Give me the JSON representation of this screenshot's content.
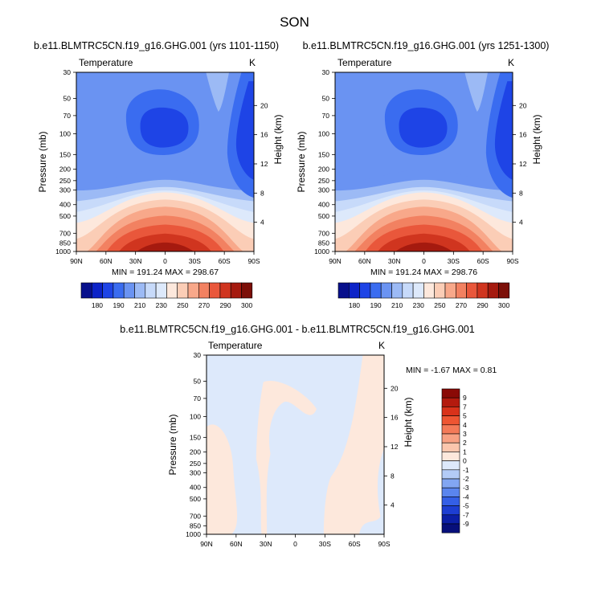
{
  "figure_title": "SON",
  "chart_data": [
    {
      "type": "heatmap",
      "title": "b.e11.BLMTRC5CN.f19_g16.GHG.001 (yrs 1101-1150)",
      "left_label": "Temperature",
      "right_label": "K",
      "xlabel": "",
      "ylabel": "Pressure (mb)",
      "y2label": "Height (km)",
      "x_ticks": [
        "90N",
        "60N",
        "30N",
        "0",
        "30S",
        "60S",
        "90S"
      ],
      "y_ticks": [
        "30",
        "50",
        "70",
        "100",
        "150",
        "200",
        "250",
        "300",
        "400",
        "500",
        "700",
        "850",
        "1000"
      ],
      "y2_ticks": [
        "20",
        "16",
        "12",
        "8",
        "4"
      ],
      "min": 191.24,
      "max": 298.67,
      "stats": "MIN = 191.24  MAX = 298.67",
      "colorbar": {
        "orientation": "horizontal",
        "labels": [
          "180",
          "190",
          "210",
          "230",
          "250",
          "270",
          "290",
          "300"
        ]
      }
    },
    {
      "type": "heatmap",
      "title": "b.e11.BLMTRC5CN.f19_g16.GHG.001 (yrs 1251-1300)",
      "left_label": "Temperature",
      "right_label": "K",
      "xlabel": "",
      "ylabel": "Pressure (mb)",
      "y2label": "Height (km)",
      "x_ticks": [
        "90N",
        "60N",
        "30N",
        "0",
        "30S",
        "60S",
        "90S"
      ],
      "y_ticks": [
        "30",
        "50",
        "70",
        "100",
        "150",
        "200",
        "250",
        "300",
        "400",
        "500",
        "700",
        "850",
        "1000"
      ],
      "y2_ticks": [
        "20",
        "16",
        "12",
        "8",
        "4"
      ],
      "min": 191.24,
      "max": 298.76,
      "stats": "MIN = 191.24  MAX = 298.76",
      "colorbar": {
        "orientation": "horizontal",
        "labels": [
          "180",
          "190",
          "210",
          "230",
          "250",
          "270",
          "290",
          "300"
        ]
      }
    },
    {
      "type": "heatmap",
      "title": "b.e11.BLMTRC5CN.f19_g16.GHG.001 - b.e11.BLMTRC5CN.f19_g16.GHG.001",
      "left_label": "Temperature",
      "right_label": "K",
      "xlabel": "",
      "ylabel": "Pressure (mb)",
      "y2label": "Height (km)",
      "x_ticks": [
        "90N",
        "60N",
        "30N",
        "0",
        "30S",
        "60S",
        "90S"
      ],
      "y_ticks": [
        "30",
        "50",
        "70",
        "100",
        "150",
        "200",
        "250",
        "300",
        "400",
        "500",
        "700",
        "850",
        "1000"
      ],
      "y2_ticks": [
        "20",
        "16",
        "12",
        "8",
        "4"
      ],
      "min": -1.67,
      "max": 0.81,
      "stats": "MIN = -1.67  MAX =  0.81",
      "colorbar": {
        "orientation": "vertical",
        "labels": [
          "9",
          "7",
          "5",
          "4",
          "3",
          "2",
          "1",
          "0",
          "-1",
          "-2",
          "-3",
          "-4",
          "-5",
          "-7",
          "-9"
        ]
      }
    }
  ],
  "colors": {
    "temp_fills": [
      "#08108c",
      "#0c23c8",
      "#1e44e6",
      "#3a6cf0",
      "#6a93f2",
      "#9cbaf5",
      "#c7dafa",
      "#dde9fb",
      "#fde8dc",
      "#fbcdb6",
      "#f8a88a",
      "#f28161",
      "#e9573b",
      "#d0351f",
      "#a51a0f",
      "#7c0f08"
    ],
    "diff_fills": [
      "#8a0a06",
      "#b41a0e",
      "#d9321a",
      "#ee5532",
      "#f47a58",
      "#f8a183",
      "#fbc6ad",
      "#fde8dc",
      "#dde9fb",
      "#b3cbf7",
      "#82a6f2",
      "#5a85ee",
      "#345fe6",
      "#1d3ed2",
      "#0c1fa6",
      "#070f7a"
    ]
  }
}
